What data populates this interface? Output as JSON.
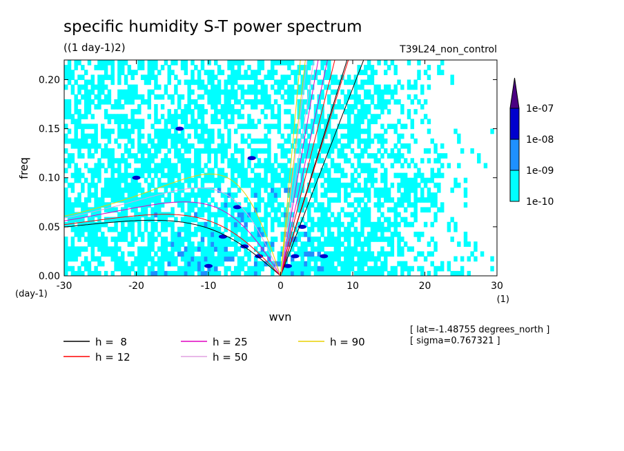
{
  "chart_data": {
    "type": "heatmap",
    "title": "specific humidity S-T power spectrum",
    "units_label": "((1 day-1)2)",
    "run_label": "T39L24_non_control",
    "xlabel": "wvn",
    "ylabel": "freq",
    "x_unit_label": "(1)",
    "y_unit_label": "(day-1)",
    "xlim": [
      -30,
      30
    ],
    "ylim": [
      0,
      0.22
    ],
    "x_ticks": [
      -30,
      -20,
      -10,
      0,
      10,
      20,
      30
    ],
    "x_tick_labels": [
      "-30",
      "-20",
      "-10",
      "0",
      "10",
      "20",
      "30"
    ],
    "y_ticks": [
      0,
      0.05,
      0.1,
      0.15,
      0.2
    ],
    "y_tick_labels": [
      "0.00",
      "0.05",
      "0.10",
      "0.15",
      "0.20"
    ],
    "colorbar": {
      "levels": [
        "1e-10",
        "1e-09",
        "1e-08",
        "1e-07"
      ],
      "colors": [
        "#00ffff",
        "#1e90ff",
        "#0000cd",
        "#4b0082"
      ]
    },
    "dispersion_curves": [
      {
        "name": "h =  8",
        "h": 8,
        "color": "#000000"
      },
      {
        "name": "h = 12",
        "h": 12,
        "color": "#ff0000"
      },
      {
        "name": "h = 25",
        "h": 25,
        "color": "#e000c0"
      },
      {
        "name": "h = 50",
        "h": 50,
        "color": "#e0a0e0"
      },
      {
        "name": "h = 90",
        "h": 90,
        "color": "#e8d000"
      }
    ],
    "annotation_lat": "[ lat=-1.48755 degrees_north ]",
    "annotation_sigma": "[ sigma=0.767321 ]"
  }
}
